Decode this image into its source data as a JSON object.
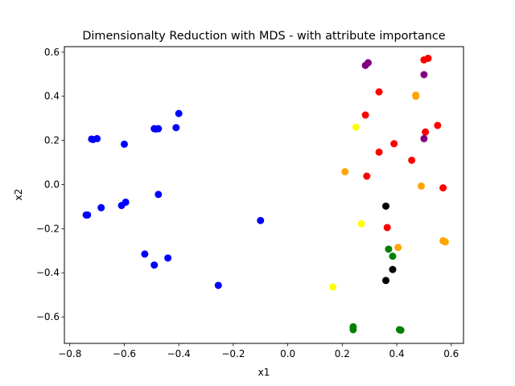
{
  "chart_data": {
    "type": "scatter",
    "title": "Dimensionalty Reduction with MDS - with attribute importance",
    "xlabel": "x1",
    "ylabel": "x2",
    "xlim": [
      -0.82,
      0.645
    ],
    "ylim": [
      -0.72,
      0.625
    ],
    "grid": false,
    "x_ticks": [
      -0.8,
      -0.6,
      -0.4,
      -0.2,
      0.0,
      0.2,
      0.4,
      0.6
    ],
    "x_tick_labels": [
      "−0.8",
      "−0.6",
      "−0.4",
      "−0.2",
      "0.0",
      "0.2",
      "0.4",
      "0.6"
    ],
    "y_ticks": [
      -0.6,
      -0.4,
      -0.2,
      0.0,
      0.2,
      0.4,
      0.6
    ],
    "y_tick_labels": [
      "−0.6",
      "−0.4",
      "−0.2",
      "0.0",
      "0.2",
      "0.4",
      "0.6"
    ],
    "series": [
      {
        "color": "#0000ff",
        "points": [
          [
            -0.72,
            0.206
          ],
          [
            -0.715,
            0.204
          ],
          [
            -0.7,
            0.208
          ],
          [
            -0.6,
            0.183
          ],
          [
            -0.49,
            0.253
          ],
          [
            -0.485,
            0.252
          ],
          [
            -0.475,
            0.253
          ],
          [
            -0.41,
            0.258
          ],
          [
            -0.4,
            0.322
          ],
          [
            -0.475,
            -0.045
          ],
          [
            -0.595,
            -0.08
          ],
          [
            -0.61,
            -0.095
          ],
          [
            -0.685,
            -0.105
          ],
          [
            -0.74,
            -0.138
          ],
          [
            -0.735,
            -0.138
          ],
          [
            -0.525,
            -0.315
          ],
          [
            -0.49,
            -0.365
          ],
          [
            -0.44,
            -0.333
          ],
          [
            -0.255,
            -0.457
          ],
          [
            -0.1,
            -0.163
          ]
        ]
      },
      {
        "color": "#ff0000",
        "points": [
          [
            0.5,
            0.565
          ],
          [
            0.515,
            0.572
          ],
          [
            0.335,
            0.42
          ],
          [
            0.285,
            0.315
          ],
          [
            0.505,
            0.238
          ],
          [
            0.55,
            0.268
          ],
          [
            0.39,
            0.185
          ],
          [
            0.335,
            0.147
          ],
          [
            0.455,
            0.11
          ],
          [
            0.29,
            0.038
          ],
          [
            0.57,
            -0.015
          ],
          [
            0.365,
            -0.195
          ]
        ]
      },
      {
        "color": "#800080",
        "points": [
          [
            0.295,
            0.552
          ],
          [
            0.285,
            0.54
          ],
          [
            0.5,
            0.498
          ],
          [
            0.5,
            0.208
          ]
        ]
      },
      {
        "color": "#ffa500",
        "points": [
          [
            0.47,
            0.405
          ],
          [
            0.47,
            0.4
          ],
          [
            0.21,
            0.058
          ],
          [
            0.49,
            -0.007
          ],
          [
            0.405,
            -0.285
          ],
          [
            0.57,
            -0.255
          ],
          [
            0.578,
            -0.26
          ]
        ]
      },
      {
        "color": "#ffff00",
        "points": [
          [
            0.25,
            0.26
          ],
          [
            0.27,
            -0.178
          ],
          [
            0.165,
            -0.465
          ]
        ]
      },
      {
        "color": "#000000",
        "points": [
          [
            0.36,
            -0.098
          ],
          [
            0.385,
            -0.385
          ],
          [
            0.36,
            -0.435
          ]
        ]
      },
      {
        "color": "#008000",
        "points": [
          [
            0.37,
            -0.293
          ],
          [
            0.385,
            -0.325
          ],
          [
            0.24,
            -0.645
          ],
          [
            0.24,
            -0.658
          ],
          [
            0.41,
            -0.658
          ],
          [
            0.415,
            -0.66
          ]
        ]
      }
    ]
  }
}
